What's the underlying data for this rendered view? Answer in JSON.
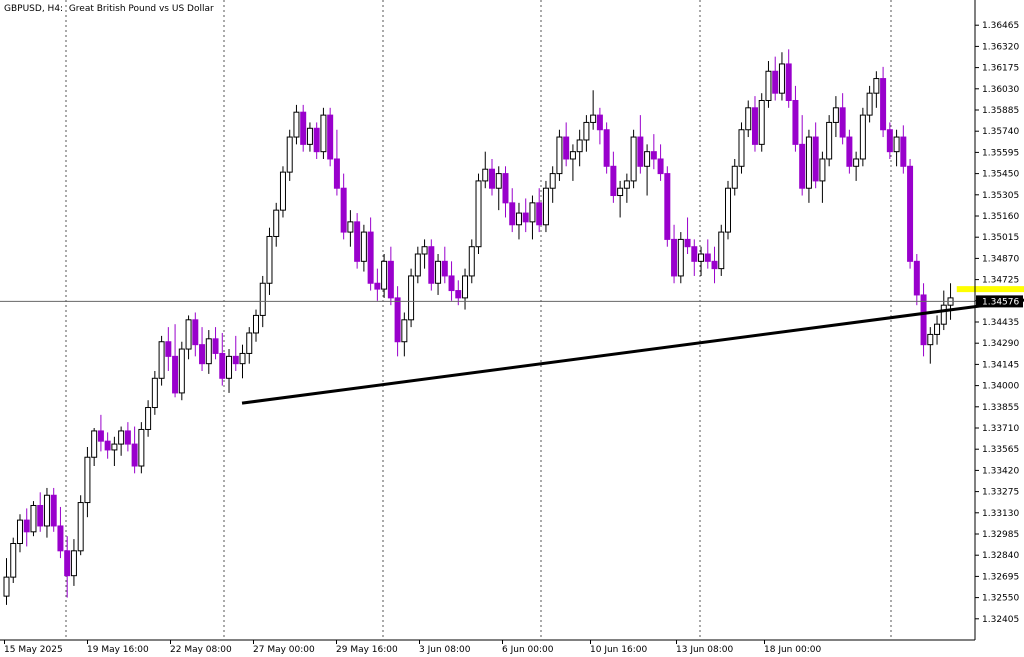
{
  "chart_data": {
    "type": "candlestick",
    "symbol": "GBPUSD",
    "timeframe": "H4",
    "description": "Great British Pound vs US Dollar",
    "title_separator": ", ",
    "title_desc_separator": ":  ",
    "current_price": "1.34576",
    "y_ticks": [
      "1.36465",
      "1.36320",
      "1.36175",
      "1.36030",
      "1.35885",
      "1.35740",
      "1.35595",
      "1.35450",
      "1.35305",
      "1.35160",
      "1.35015",
      "1.34870",
      "1.34725",
      "1.34580",
      "1.34435",
      "1.34290",
      "1.34145",
      "1.34000",
      "1.33855",
      "1.33710",
      "1.33565",
      "1.33420",
      "1.33275",
      "1.33130",
      "1.32985",
      "1.32840",
      "1.32695",
      "1.32550",
      "1.32405"
    ],
    "x_ticks": [
      "15 May 2025",
      "19 May 16:00",
      "22 May 08:00",
      "27 May 00:00",
      "29 May 16:00",
      "3 Jun 08:00",
      "6 Jun 00:00",
      "10 Jun 16:00",
      "13 Jun 08:00",
      "18 Jun 00:00"
    ],
    "ylim": [
      1.3226,
      1.3661
    ],
    "grid": "vertical-dashed",
    "colors": {
      "bull": "#ffffff",
      "bear": "#9900cc",
      "wick_bull": "#000000",
      "wick_bear": "#9900cc",
      "trendline": "#000000",
      "support": "#ffff00"
    },
    "trendline": {
      "from": [
        35,
        1.3388
      ],
      "to": [
        226,
        1.3504
      ]
    },
    "support_zone": {
      "from": 141,
      "to": 240,
      "price": 1.3466
    },
    "candles": [
      [
        1.3256,
        1.3282,
        1.325,
        1.3269
      ],
      [
        1.3269,
        1.3296,
        1.3265,
        1.3292
      ],
      [
        1.3292,
        1.3312,
        1.3286,
        1.3308
      ],
      [
        1.3308,
        1.3316,
        1.329,
        1.33
      ],
      [
        1.33,
        1.3321,
        1.3297,
        1.3318
      ],
      [
        1.3318,
        1.3327,
        1.33,
        1.3304
      ],
      [
        1.3304,
        1.333,
        1.3296,
        1.3325
      ],
      [
        1.3325,
        1.333,
        1.33,
        1.3304
      ],
      [
        1.3304,
        1.3317,
        1.3282,
        1.3287
      ],
      [
        1.3287,
        1.3297,
        1.3255,
        1.327
      ],
      [
        1.327,
        1.3295,
        1.3263,
        1.3287
      ],
      [
        1.3287,
        1.3325,
        1.3284,
        1.332
      ],
      [
        1.332,
        1.3358,
        1.331,
        1.3351
      ],
      [
        1.3351,
        1.3371,
        1.3345,
        1.3369
      ],
      [
        1.3369,
        1.338,
        1.3355,
        1.3362
      ],
      [
        1.3362,
        1.3368,
        1.335,
        1.3356
      ],
      [
        1.3356,
        1.3365,
        1.3345,
        1.336
      ],
      [
        1.336,
        1.3372,
        1.3352,
        1.3369
      ],
      [
        1.3369,
        1.3375,
        1.3355,
        1.336
      ],
      [
        1.336,
        1.3372,
        1.334,
        1.3345
      ],
      [
        1.3345,
        1.3375,
        1.334,
        1.337
      ],
      [
        1.337,
        1.339,
        1.3365,
        1.3385
      ],
      [
        1.3385,
        1.341,
        1.338,
        1.3405
      ],
      [
        1.3405,
        1.3434,
        1.34,
        1.343
      ],
      [
        1.343,
        1.344,
        1.341,
        1.342
      ],
      [
        1.342,
        1.3442,
        1.3392,
        1.3395
      ],
      [
        1.3395,
        1.343,
        1.339,
        1.3425
      ],
      [
        1.3425,
        1.3448,
        1.3418,
        1.3445
      ],
      [
        1.3445,
        1.345,
        1.342,
        1.3428
      ],
      [
        1.3428,
        1.344,
        1.341,
        1.3415
      ],
      [
        1.3415,
        1.3438,
        1.3408,
        1.3432
      ],
      [
        1.3432,
        1.344,
        1.3418,
        1.3422
      ],
      [
        1.3422,
        1.3436,
        1.34,
        1.3405
      ],
      [
        1.3405,
        1.3425,
        1.3395,
        1.342
      ],
      [
        1.342,
        1.3434,
        1.341,
        1.3415
      ],
      [
        1.3415,
        1.3428,
        1.3405,
        1.3422
      ],
      [
        1.3422,
        1.344,
        1.3415,
        1.3436
      ],
      [
        1.3436,
        1.3452,
        1.343,
        1.3448
      ],
      [
        1.3448,
        1.3475,
        1.344,
        1.347
      ],
      [
        1.347,
        1.3508,
        1.3462,
        1.3502
      ],
      [
        1.3502,
        1.3525,
        1.3495,
        1.352
      ],
      [
        1.352,
        1.355,
        1.3515,
        1.3546
      ],
      [
        1.3546,
        1.3575,
        1.354,
        1.357
      ],
      [
        1.357,
        1.3592,
        1.3565,
        1.3587
      ],
      [
        1.3587,
        1.3592,
        1.356,
        1.3565
      ],
      [
        1.3565,
        1.358,
        1.356,
        1.3576
      ],
      [
        1.3576,
        1.358,
        1.3555,
        1.356
      ],
      [
        1.356,
        1.359,
        1.3555,
        1.3585
      ],
      [
        1.3585,
        1.359,
        1.355,
        1.3555
      ],
      [
        1.3555,
        1.3575,
        1.353,
        1.3535
      ],
      [
        1.3535,
        1.3545,
        1.35,
        1.3505
      ],
      [
        1.3505,
        1.352,
        1.3495,
        1.3512
      ],
      [
        1.3512,
        1.3518,
        1.348,
        1.3485
      ],
      [
        1.3485,
        1.351,
        1.3478,
        1.3505
      ],
      [
        1.3505,
        1.3515,
        1.3465,
        1.347
      ],
      [
        1.347,
        1.348,
        1.3458,
        1.3466
      ],
      [
        1.3466,
        1.349,
        1.346,
        1.3485
      ],
      [
        1.3485,
        1.3495,
        1.3455,
        1.346
      ],
      [
        1.346,
        1.3468,
        1.342,
        1.343
      ],
      [
        1.343,
        1.345,
        1.342,
        1.3445
      ],
      [
        1.3445,
        1.348,
        1.344,
        1.3475
      ],
      [
        1.3475,
        1.3495,
        1.347,
        1.349
      ],
      [
        1.349,
        1.35,
        1.348,
        1.3495
      ],
      [
        1.3495,
        1.35,
        1.3465,
        1.347
      ],
      [
        1.347,
        1.349,
        1.3462,
        1.3485
      ],
      [
        1.3485,
        1.3495,
        1.347,
        1.3475
      ],
      [
        1.3475,
        1.3485,
        1.3458,
        1.3465
      ],
      [
        1.3465,
        1.3472,
        1.3455,
        1.346
      ],
      [
        1.346,
        1.348,
        1.3452,
        1.3475
      ],
      [
        1.3475,
        1.35,
        1.347,
        1.3495
      ],
      [
        1.3495,
        1.3545,
        1.349,
        1.354
      ],
      [
        1.354,
        1.356,
        1.3535,
        1.3548
      ],
      [
        1.3548,
        1.3555,
        1.353,
        1.3535
      ],
      [
        1.3535,
        1.355,
        1.352,
        1.3545
      ],
      [
        1.3545,
        1.355,
        1.3515,
        1.3525
      ],
      [
        1.3525,
        1.3535,
        1.3505,
        1.351
      ],
      [
        1.351,
        1.3525,
        1.35,
        1.3518
      ],
      [
        1.3518,
        1.3528,
        1.3505,
        1.3512
      ],
      [
        1.3512,
        1.353,
        1.35,
        1.3525
      ],
      [
        1.3525,
        1.3535,
        1.3505,
        1.351
      ],
      [
        1.351,
        1.354,
        1.3505,
        1.3535
      ],
      [
        1.3535,
        1.355,
        1.3525,
        1.3545
      ],
      [
        1.3545,
        1.3575,
        1.354,
        1.357
      ],
      [
        1.357,
        1.358,
        1.355,
        1.3555
      ],
      [
        1.3555,
        1.3565,
        1.354,
        1.356
      ],
      [
        1.356,
        1.3575,
        1.355,
        1.3568
      ],
      [
        1.3568,
        1.3585,
        1.356,
        1.358
      ],
      [
        1.358,
        1.3602,
        1.3575,
        1.3585
      ],
      [
        1.3585,
        1.359,
        1.3565,
        1.3575
      ],
      [
        1.3575,
        1.358,
        1.3545,
        1.355
      ],
      [
        1.355,
        1.356,
        1.3525,
        1.353
      ],
      [
        1.353,
        1.354,
        1.3515,
        1.3535
      ],
      [
        1.3535,
        1.3545,
        1.3525,
        1.354
      ],
      [
        1.354,
        1.3575,
        1.3535,
        1.357
      ],
      [
        1.357,
        1.3585,
        1.3545,
        1.355
      ],
      [
        1.355,
        1.3565,
        1.353,
        1.356
      ],
      [
        1.356,
        1.3572,
        1.3548,
        1.3555
      ],
      [
        1.3555,
        1.3565,
        1.354,
        1.3545
      ],
      [
        1.3545,
        1.355,
        1.3495,
        1.35
      ],
      [
        1.35,
        1.351,
        1.347,
        1.3475
      ],
      [
        1.3475,
        1.3505,
        1.347,
        1.35
      ],
      [
        1.35,
        1.3515,
        1.349,
        1.3495
      ],
      [
        1.3495,
        1.35,
        1.3475,
        1.3485
      ],
      [
        1.3485,
        1.3495,
        1.3475,
        1.349
      ],
      [
        1.349,
        1.35,
        1.348,
        1.3485
      ],
      [
        1.3485,
        1.3495,
        1.347,
        1.348
      ],
      [
        1.348,
        1.351,
        1.3475,
        1.3505
      ],
      [
        1.3505,
        1.354,
        1.35,
        1.3535
      ],
      [
        1.3535,
        1.3555,
        1.353,
        1.355
      ],
      [
        1.355,
        1.358,
        1.3545,
        1.3575
      ],
      [
        1.3575,
        1.3595,
        1.357,
        1.359
      ],
      [
        1.359,
        1.3598,
        1.356,
        1.3565
      ],
      [
        1.3565,
        1.36,
        1.356,
        1.3595
      ],
      [
        1.3595,
        1.3622,
        1.359,
        1.3615
      ],
      [
        1.3615,
        1.3625,
        1.3595,
        1.36
      ],
      [
        1.36,
        1.3628,
        1.3595,
        1.362
      ],
      [
        1.362,
        1.363,
        1.359,
        1.3595
      ],
      [
        1.3595,
        1.3605,
        1.356,
        1.3565
      ],
      [
        1.3565,
        1.3585,
        1.353,
        1.3535
      ],
      [
        1.3535,
        1.3575,
        1.3525,
        1.357
      ],
      [
        1.357,
        1.358,
        1.3535,
        1.354
      ],
      [
        1.354,
        1.356,
        1.3525,
        1.3555
      ],
      [
        1.3555,
        1.3585,
        1.355,
        1.358
      ],
      [
        1.358,
        1.3598,
        1.357,
        1.359
      ],
      [
        1.359,
        1.36,
        1.3565,
        1.357
      ],
      [
        1.357,
        1.3575,
        1.3545,
        1.355
      ],
      [
        1.355,
        1.356,
        1.354,
        1.3555
      ],
      [
        1.3555,
        1.359,
        1.355,
        1.3585
      ],
      [
        1.3585,
        1.3605,
        1.358,
        1.36
      ],
      [
        1.36,
        1.3615,
        1.359,
        1.361
      ],
      [
        1.361,
        1.3618,
        1.357,
        1.3575
      ],
      [
        1.3575,
        1.358,
        1.3555,
        1.356
      ],
      [
        1.356,
        1.3575,
        1.355,
        1.357
      ],
      [
        1.357,
        1.3578,
        1.3545,
        1.355
      ],
      [
        1.355,
        1.3555,
        1.348,
        1.3485
      ],
      [
        1.3485,
        1.349,
        1.3455,
        1.3462
      ],
      [
        1.3462,
        1.347,
        1.342,
        1.3428
      ],
      [
        1.3428,
        1.344,
        1.3415,
        1.3435
      ],
      [
        1.3435,
        1.3448,
        1.3428,
        1.3442
      ],
      [
        1.3442,
        1.3465,
        1.3438,
        1.3455
      ],
      [
        1.3455,
        1.347,
        1.3445,
        1.346
      ]
    ]
  }
}
